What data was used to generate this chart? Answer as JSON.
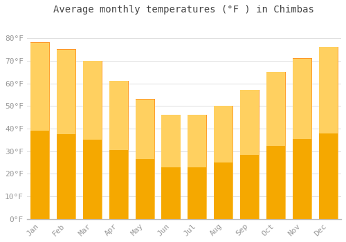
{
  "months": [
    "Jan",
    "Feb",
    "Mar",
    "Apr",
    "May",
    "Jun",
    "Jul",
    "Aug",
    "Sep",
    "Oct",
    "Nov",
    "Dec"
  ],
  "values": [
    78,
    75,
    70,
    61,
    53,
    46,
    46,
    50,
    57,
    65,
    71,
    76
  ],
  "bar_color_bottom": "#F5A800",
  "bar_color_top": "#FFD966",
  "title": "Average monthly temperatures (°F ) in Chimbas",
  "ylim": [
    0,
    88
  ],
  "yticks": [
    0,
    10,
    20,
    30,
    40,
    50,
    60,
    70,
    80
  ],
  "ytick_labels": [
    "0°F",
    "10°F",
    "20°F",
    "30°F",
    "40°F",
    "50°F",
    "60°F",
    "70°F",
    "80°F"
  ],
  "background_color": "#FFFFFF",
  "grid_color": "#DDDDDD",
  "title_fontsize": 10,
  "tick_fontsize": 8,
  "tick_color": "#999999",
  "title_color": "#444444"
}
